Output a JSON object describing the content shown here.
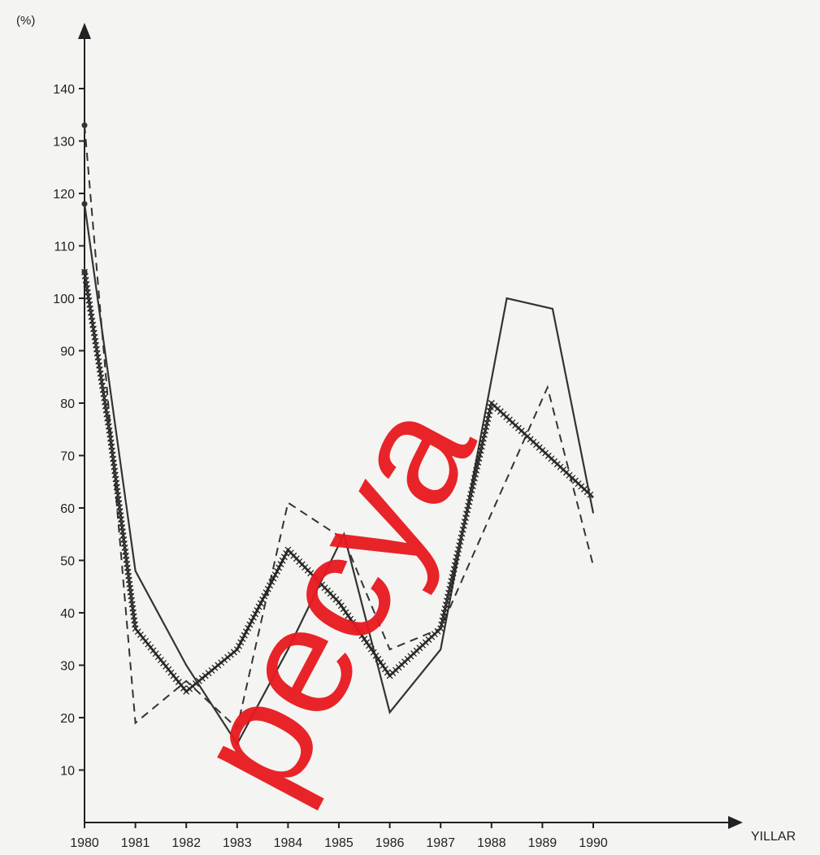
{
  "chart_data": {
    "type": "line",
    "title": "",
    "ylabel": "(%)",
    "xlabel": "YILLAR",
    "x": [
      "1980",
      "1981",
      "1982",
      "1983",
      "1984",
      "1985",
      "1986",
      "1987",
      "1988",
      "1989",
      "1990"
    ],
    "yticks": [
      10,
      20,
      30,
      40,
      50,
      60,
      70,
      80,
      90,
      100,
      110,
      120,
      130,
      140
    ],
    "ylim": [
      0,
      150
    ],
    "grid": false,
    "legend": "none",
    "series": [
      {
        "style": "solid",
        "points": [
          [
            1980.0,
            118
          ],
          [
            1981.0,
            48
          ],
          [
            1982.0,
            30
          ],
          [
            1983.0,
            15
          ],
          [
            1984.0,
            33
          ],
          [
            1985.1,
            55
          ],
          [
            1986.0,
            21
          ],
          [
            1987.0,
            33
          ],
          [
            1988.3,
            100
          ],
          [
            1989.2,
            98
          ],
          [
            1990.0,
            59
          ]
        ]
      },
      {
        "style": "dashed",
        "points": [
          [
            1980.0,
            133
          ],
          [
            1981.0,
            19
          ],
          [
            1982.0,
            27
          ],
          [
            1983.0,
            18
          ],
          [
            1984.0,
            61
          ],
          [
            1985.1,
            54
          ],
          [
            1986.0,
            33
          ],
          [
            1987.0,
            37
          ],
          [
            1988.0,
            59
          ],
          [
            1989.1,
            83
          ],
          [
            1990.0,
            49
          ]
        ]
      },
      {
        "style": "x-marker",
        "points": [
          [
            1980.0,
            105
          ],
          [
            1980.5,
            74
          ],
          [
            1981.0,
            37
          ],
          [
            1982.0,
            25
          ],
          [
            1983.0,
            33
          ],
          [
            1984.0,
            52
          ],
          [
            1985.0,
            42
          ],
          [
            1986.0,
            28
          ],
          [
            1987.0,
            37
          ],
          [
            1988.0,
            80
          ],
          [
            1989.0,
            71
          ],
          [
            1990.0,
            62
          ]
        ]
      }
    ],
    "watermark": "pecya"
  }
}
